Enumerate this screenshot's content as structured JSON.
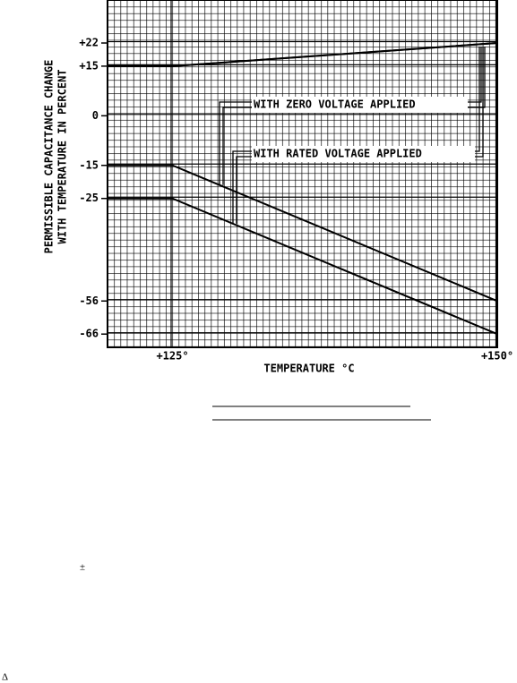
{
  "chart_data": {
    "type": "line",
    "y_label": [
      "PERMISSIBLE CAPACITANCE CHANGE",
      "WITH TEMPERATURE IN PERCENT"
    ],
    "x_label": "TEMPERATURE °C",
    "x": [
      120,
      125,
      150
    ],
    "series": [
      {
        "name": "WITH ZERO VOLTAGE APPLIED",
        "color": "#000000",
        "upper": [
          15,
          15,
          22
        ],
        "lower": [
          -15,
          -15,
          -56
        ]
      },
      {
        "name": "WITH RATED VOLTAGE APPLIED",
        "color": "#000000",
        "upper": [
          15,
          15,
          22
        ],
        "lower": [
          -25,
          -25,
          -66
        ]
      }
    ],
    "xlim": [
      120,
      150
    ],
    "xticks": [
      {
        "value": 125,
        "label": "+125°"
      },
      {
        "value": 150,
        "label": "+150°"
      }
    ],
    "ylim": [
      -70,
      35
    ],
    "yticks": [
      {
        "value": 22,
        "label": "+22"
      },
      {
        "value": 15,
        "label": "+15"
      },
      0,
      -15,
      -25,
      -56,
      -66
    ],
    "grid": true
  },
  "extra_text": [
    "±",
    "Δ"
  ]
}
